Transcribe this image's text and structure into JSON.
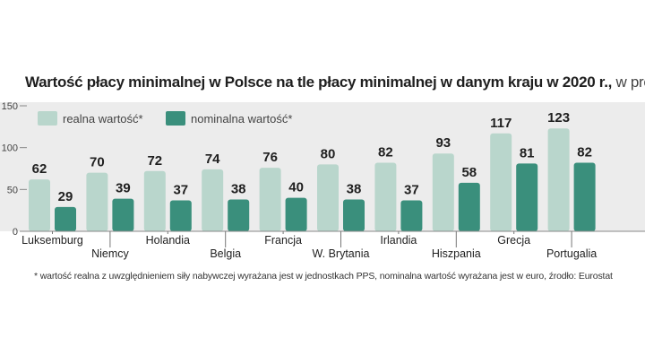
{
  "chart_data": {
    "type": "bar",
    "title": "Wartość płacy minimalnej w Polsce na tle płacy minimalnej w danym kraju w 2020 r.,",
    "title_unit": "w proc.",
    "categories": [
      "Luksemburg",
      "Niemcy",
      "Holandia",
      "Belgia",
      "Francja",
      "W. Brytania",
      "Irlandia",
      "Hiszpania",
      "Grecja",
      "Portugalia"
    ],
    "series": [
      {
        "name": "realna wartość*",
        "values": [
          62,
          70,
          72,
          74,
          76,
          80,
          82,
          93,
          117,
          123
        ],
        "color": "#b9d6cc"
      },
      {
        "name": "nominalna wartość*",
        "values": [
          29,
          39,
          37,
          38,
          40,
          38,
          37,
          58,
          81,
          82
        ],
        "color": "#3a8f7c"
      }
    ],
    "ylim": [
      0,
      150
    ],
    "yticks": [
      0,
      50,
      100,
      150
    ],
    "legend": "top-left",
    "grid": false
  },
  "footnote": "* wartość realna z uwzględnieniem siły nabywczej wyrażana jest w jednostkach PPS, nominalna wartość wyrażana jest w euro, źrodło: Eurostat"
}
